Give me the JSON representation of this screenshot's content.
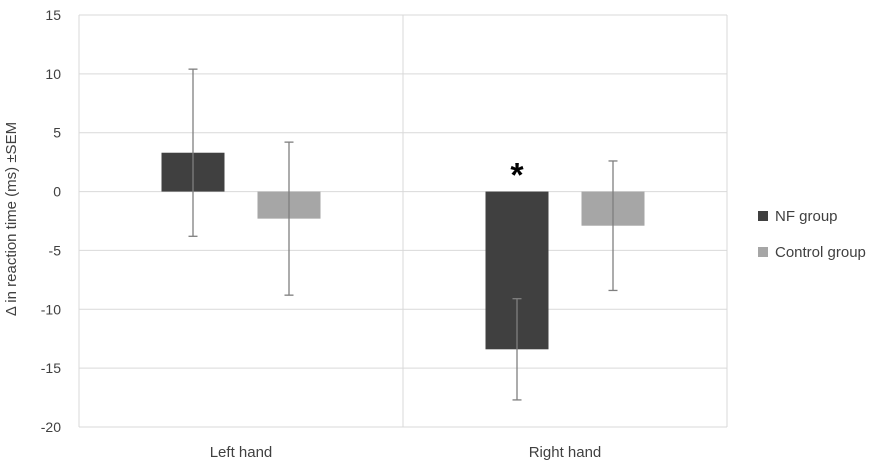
{
  "chart_data": {
    "type": "bar",
    "title": "",
    "xlabel": "",
    "ylabel": "Δ in reaction time (ms) ±SEM",
    "ylim": [
      -20,
      15
    ],
    "yticks": [
      15,
      10,
      5,
      0,
      -5,
      -10,
      -15,
      -20
    ],
    "categories": [
      "Left hand",
      "Right hand"
    ],
    "grid": true,
    "legend_position": "right",
    "series": [
      {
        "name": "NF group",
        "color": "#404040",
        "values": [
          3.3,
          -13.4
        ],
        "error": [
          7.1,
          4.3
        ]
      },
      {
        "name": "Control group",
        "color": "#a6a6a6",
        "values": [
          -2.3,
          -2.9
        ],
        "error": [
          6.5,
          5.5
        ]
      }
    ],
    "annotations": [
      {
        "text": "*",
        "category": "Right hand",
        "series": "NF group"
      }
    ]
  }
}
